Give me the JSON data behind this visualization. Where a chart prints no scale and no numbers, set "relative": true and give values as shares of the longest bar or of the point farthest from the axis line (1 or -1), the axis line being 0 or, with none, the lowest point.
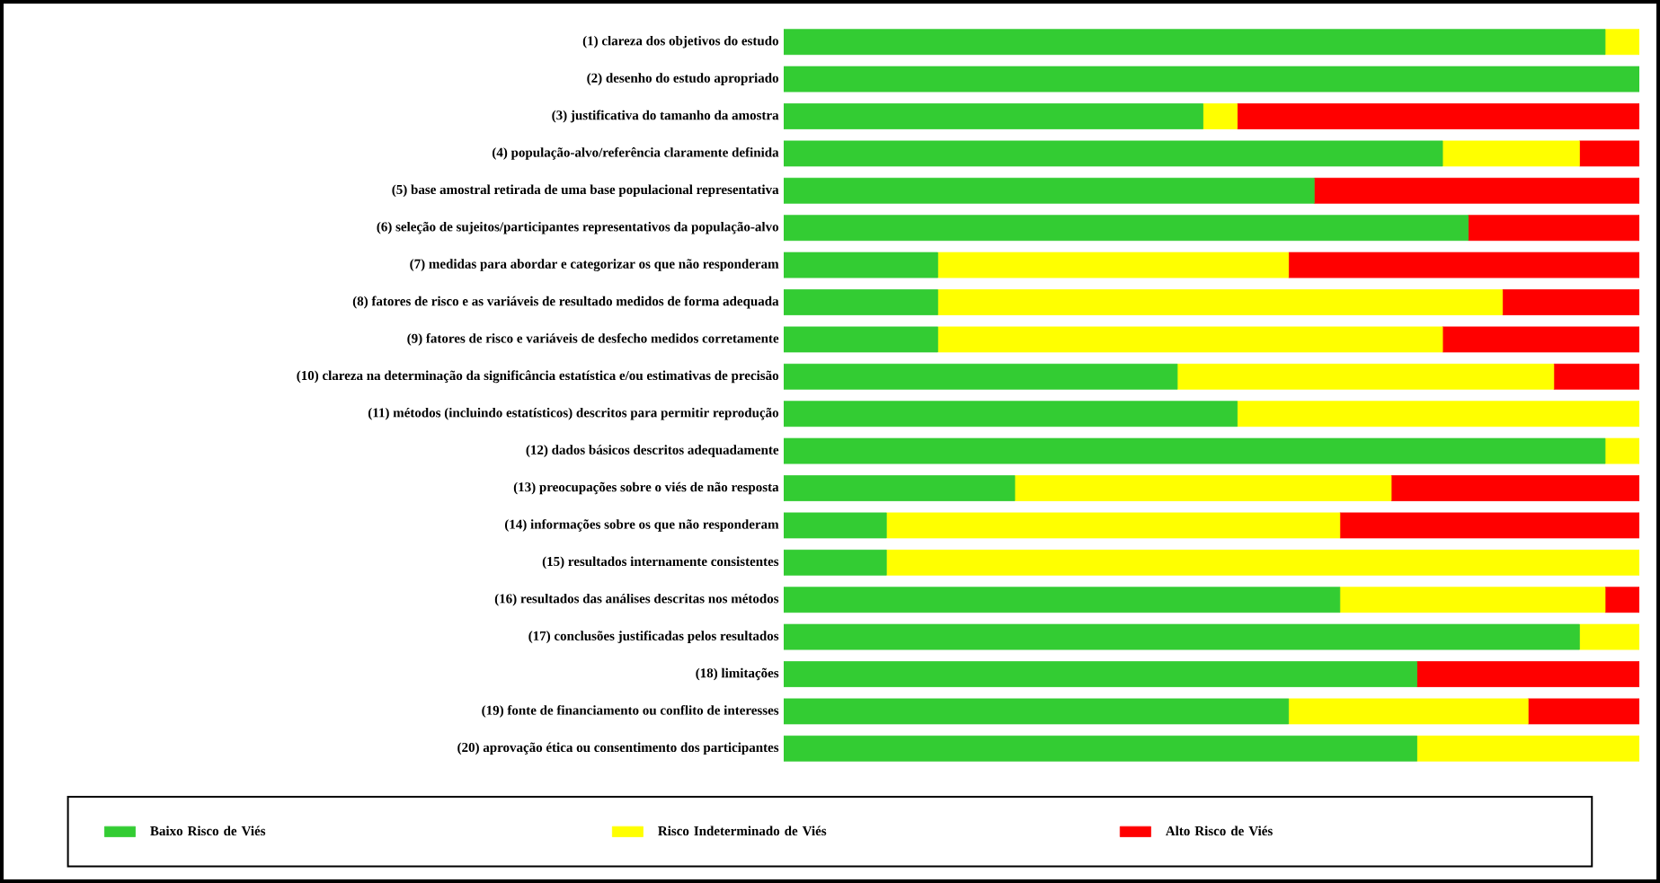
{
  "chart_data": {
    "type": "bar",
    "orientation": "horizontal",
    "stacked": true,
    "relative": true,
    "legend": "bottom",
    "categories": [
      "(1) clareza dos objetivos do estudo",
      "(2) desenho do estudo apropriado",
      "(3) justificativa do tamanho da amostra",
      "(4) população-alvo/referência claramente definida",
      "(5) base amostral retirada de uma base populacional representativa",
      "(6) seleção de sujeitos/participantes representativos da população-alvo",
      "(7) medidas para abordar e categorizar os que não responderam",
      "(8) fatores de risco e as variáveis de resultado medidos de forma adequada",
      "(9) fatores de risco e variáveis de desfecho medidos corretamente",
      "(10) clareza na determinação da significância estatística e/ou estimativas de precisão",
      "(11) métodos (incluindo estatísticos) descritos para permitir reprodução",
      "(12) dados básicos descritos adequadamente",
      "(13) preocupações sobre o viés de não resposta",
      "(14) informações sobre os que não responderam",
      "(15) resultados internamente consistentes",
      "(16) resultados das análises descritas nos métodos",
      "(17) conclusões justificadas pelos resultados",
      "(18) limitações",
      "(19) fonte de financiamento ou conflito de interesses",
      "(20) aprovação ética ou consentimento dos participantes"
    ],
    "series": [
      {
        "name": "Baixo Risco de Viés",
        "color": "#33cc33",
        "values": [
          0.96,
          1,
          0.49,
          0.77,
          0.62,
          0.8,
          0.18,
          0.18,
          0.18,
          0.46,
          0.53,
          0.96,
          0.27,
          0.12,
          0.12,
          0.65,
          0.93,
          0.74,
          0.59,
          0.74
        ]
      },
      {
        "name": "Risco Indeterminado de Viés",
        "color": "#ffff00",
        "values": [
          0.04,
          0,
          0.04,
          0.16,
          0,
          0,
          0.41,
          0.66,
          0.59,
          0.44,
          0.47,
          0.04,
          0.44,
          0.53,
          0.88,
          0.31,
          0.07,
          0,
          0.28,
          0.26
        ]
      },
      {
        "name": "Alto Risco de Viés",
        "color": "#ff0000",
        "values": [
          0,
          0,
          0.47,
          0.07,
          0.38,
          0.2,
          0.41,
          0.16,
          0.23,
          0.1,
          0,
          0,
          0.29,
          0.35,
          0,
          0.04,
          0,
          0.26,
          0.13,
          0
        ]
      }
    ]
  }
}
